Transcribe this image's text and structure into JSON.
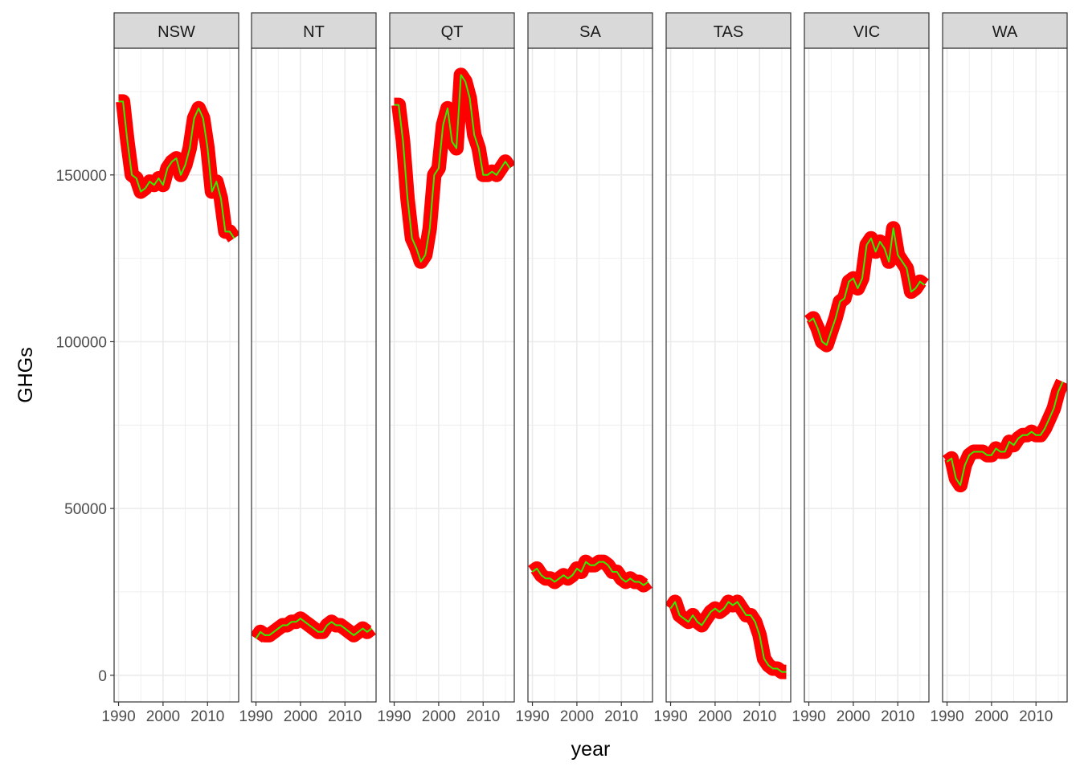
{
  "chart_data": {
    "type": "line",
    "facet": "state",
    "xlabel": "year",
    "ylabel": "GHGs",
    "xlim": [
      1989,
      2017
    ],
    "ylim": [
      -8000,
      188000
    ],
    "x_ticks": [
      1990,
      2000,
      2010
    ],
    "y_ticks": [
      0,
      50000,
      100000,
      150000
    ],
    "y_tick_labels": [
      "0",
      "50000",
      "100000",
      "150000"
    ],
    "x_tick_labels": [
      "1990",
      "2000",
      "2010"
    ],
    "grid": true,
    "legend": "none",
    "colors": {
      "thick_line": "#ff0000",
      "thin_line": "#33ee00",
      "strip_fill": "#d9d9d9",
      "panel_border": "#333333",
      "grid": "#ebebeb"
    },
    "x": [
      1990,
      1991,
      1992,
      1993,
      1994,
      1995,
      1996,
      1997,
      1998,
      1999,
      2000,
      2001,
      2002,
      2003,
      2004,
      2005,
      2006,
      2007,
      2008,
      2009,
      2010,
      2011,
      2012,
      2013,
      2014,
      2015,
      2016
    ],
    "panels": [
      {
        "state": "NSW",
        "values": [
          172000,
          172000,
          160000,
          150000,
          149000,
          145000,
          146000,
          148000,
          147000,
          149000,
          147000,
          152000,
          154000,
          155000,
          150000,
          153000,
          158000,
          167000,
          170000,
          167000,
          158000,
          145000,
          148000,
          143000,
          133000,
          133000,
          131000
        ]
      },
      {
        "state": "NT",
        "values": [
          11000,
          13000,
          12000,
          12000,
          13000,
          14000,
          15000,
          15000,
          16000,
          16000,
          17000,
          16000,
          15000,
          14000,
          13000,
          13000,
          15000,
          16000,
          15000,
          15000,
          14000,
          13000,
          12000,
          13000,
          14000,
          13000,
          14000
        ]
      },
      {
        "state": "QT",
        "values": [
          171000,
          171000,
          160000,
          143000,
          131000,
          128000,
          124000,
          126000,
          134000,
          150000,
          152000,
          165000,
          170000,
          160000,
          158000,
          180000,
          178000,
          173000,
          162000,
          158000,
          150000,
          150000,
          151000,
          150000,
          152000,
          154000,
          152000
        ]
      },
      {
        "state": "SA",
        "values": [
          31000,
          32000,
          30000,
          29000,
          29000,
          28000,
          29000,
          30000,
          29000,
          30000,
          32000,
          31000,
          34000,
          33000,
          33000,
          34000,
          34000,
          33000,
          31000,
          31000,
          29000,
          28000,
          29000,
          28000,
          28000,
          27000,
          28000
        ]
      },
      {
        "state": "TAS",
        "values": [
          20000,
          22000,
          18000,
          17000,
          16000,
          18000,
          16000,
          15000,
          17000,
          19000,
          20000,
          19000,
          20000,
          22000,
          21000,
          22000,
          20000,
          18000,
          18000,
          16000,
          12000,
          5000,
          3000,
          2000,
          2000,
          1000,
          1000
        ]
      },
      {
        "state": "VIC",
        "values": [
          106000,
          107000,
          104000,
          100000,
          99000,
          103000,
          107000,
          112000,
          113000,
          118000,
          119000,
          116000,
          119000,
          129000,
          131000,
          127000,
          130000,
          128000,
          124000,
          134000,
          126000,
          124000,
          122000,
          115000,
          116000,
          118000,
          117000
        ]
      },
      {
        "state": "WA",
        "values": [
          64000,
          65000,
          59000,
          57000,
          63000,
          66000,
          67000,
          67000,
          67000,
          66000,
          66000,
          68000,
          67000,
          67000,
          70000,
          69000,
          71000,
          72000,
          72000,
          73000,
          72000,
          72000,
          74000,
          77000,
          80000,
          85000,
          88000
        ]
      }
    ]
  }
}
